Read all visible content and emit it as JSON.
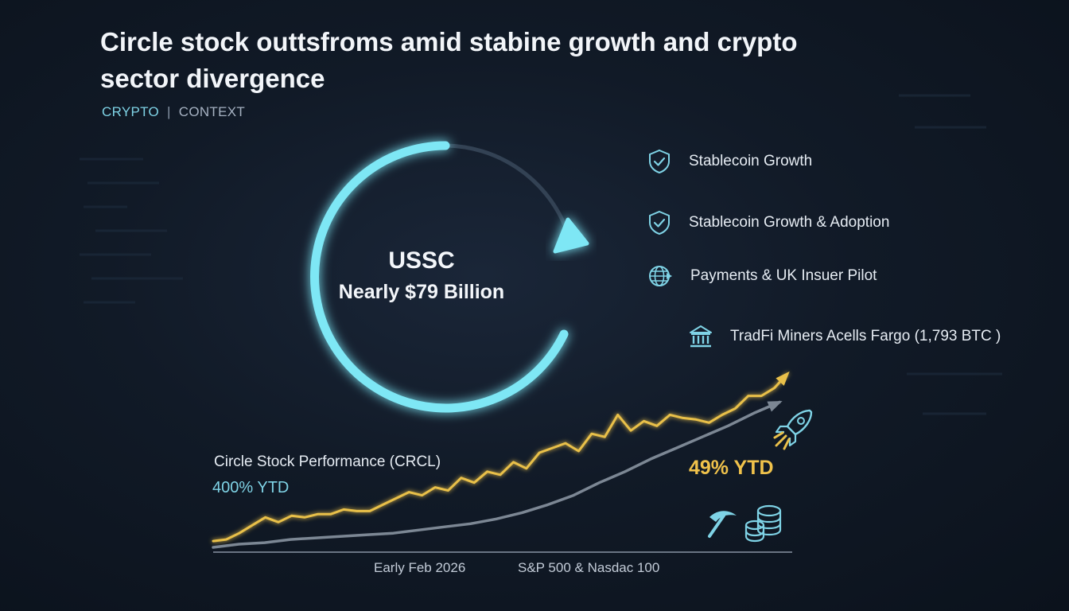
{
  "header": {
    "title": "Circle stock outtsfroms amid stabine growth and crypto sector divergence",
    "tag_primary": "CRYPTO",
    "tag_separator": "|",
    "tag_secondary": "CONTEXT"
  },
  "ring": {
    "title": "USSC",
    "subtitle": "Nearly $79 Billion",
    "accent": "#7ee7f5"
  },
  "legend": [
    {
      "label": "Stablecoin Growth",
      "icon": "shield-check-icon"
    },
    {
      "label": "Stablecoin Growth & Adoption",
      "icon": "shield-check-icon"
    },
    {
      "label": "Payments & UK Insuer Pilot",
      "icon": "globe-icon"
    },
    {
      "label": "TradFi Miners Acells Fargo (1,793 BTC )",
      "icon": "bank-icon"
    }
  ],
  "chart_data": {
    "type": "line",
    "title": "Circle Stock Performance (CRCL)",
    "x_labels": [
      "Early Feb 2026",
      "S&P 500 & Nasdac 100"
    ],
    "series": [
      {
        "name": "Circle Stock Performance (CRCL)",
        "label": "400% YTD",
        "color": "#e9c04a",
        "values": [
          4,
          5,
          9,
          14,
          19,
          16,
          20,
          19,
          21,
          21,
          24,
          23,
          23,
          27,
          31,
          35,
          33,
          38,
          36,
          44,
          41,
          48,
          46,
          54,
          50,
          60,
          63,
          66,
          61,
          72,
          70,
          84,
          74,
          80,
          77,
          84,
          82,
          81,
          79,
          84,
          88,
          96,
          96,
          101,
          110
        ]
      },
      {
        "name": "S&P 500 & Nasdac 100",
        "label": "49% YTD",
        "color": "#7c8794",
        "values": [
          0,
          2,
          3,
          5,
          6,
          7,
          8,
          9,
          11,
          13,
          15,
          18,
          22,
          27,
          33,
          41,
          48,
          56,
          63,
          70,
          77,
          85,
          92
        ]
      }
    ],
    "ylim": [
      0,
      120
    ],
    "grid": false
  },
  "colors": {
    "background": "#111a27",
    "accent_cyan": "#7ee7f5",
    "gold": "#e9c04a",
    "gray": "#7c8794"
  },
  "decor_icons": [
    "rocket-icon",
    "pickaxe-icon",
    "coin-stack-icon"
  ]
}
